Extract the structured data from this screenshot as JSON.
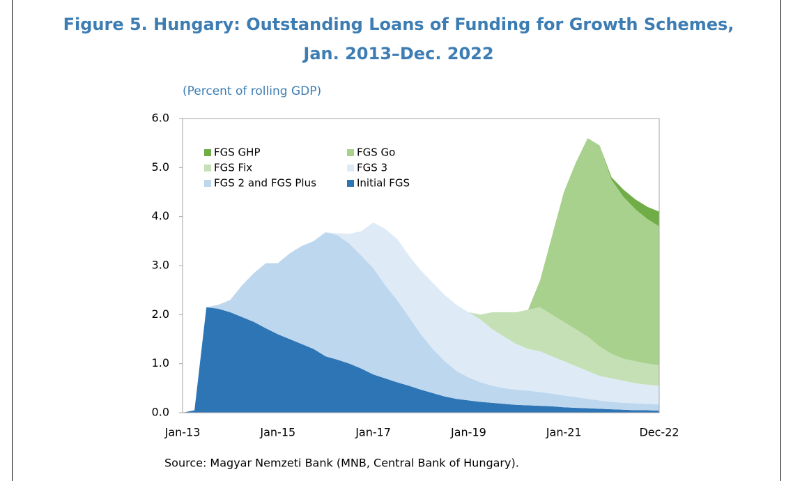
{
  "chart_data": {
    "type": "stacked_area",
    "title": "Figure 5. Hungary: Outstanding Loans of Funding for Growth Schemes,",
    "subtitle": "Jan. 2013–Dec. 2022",
    "y_label": "(Percent of rolling GDP)",
    "source": "Source: Magyar Nemzeti Bank (MNB, Central Bank of Hungary).",
    "x": [
      "Jan-13",
      "Apr-13",
      "Jul-13",
      "Oct-13",
      "Jan-14",
      "Apr-14",
      "Jul-14",
      "Oct-14",
      "Jan-15",
      "Apr-15",
      "Jul-15",
      "Oct-15",
      "Jan-16",
      "Apr-16",
      "Jul-16",
      "Oct-16",
      "Jan-17",
      "Apr-17",
      "Jul-17",
      "Oct-17",
      "Jan-18",
      "Apr-18",
      "Jul-18",
      "Oct-18",
      "Jan-19",
      "Apr-19",
      "Jul-19",
      "Oct-19",
      "Jan-20",
      "Apr-20",
      "Jul-20",
      "Oct-20",
      "Jan-21",
      "Apr-21",
      "Jul-21",
      "Oct-21",
      "Jan-22",
      "Apr-22",
      "Jul-22",
      "Oct-22",
      "Dec-22"
    ],
    "xticks": [
      "Jan-13",
      "Jan-15",
      "Jan-17",
      "Jan-19",
      "Jan-21",
      "Dec-22"
    ],
    "ylim": [
      0,
      6
    ],
    "yticks": [
      {
        "value": 0,
        "label": "0.0"
      },
      {
        "value": 1,
        "label": "1.0"
      },
      {
        "value": 2,
        "label": "2.0"
      },
      {
        "value": 3,
        "label": "3.0"
      },
      {
        "value": 4,
        "label": "4.0"
      },
      {
        "value": 5,
        "label": "5.0"
      },
      {
        "value": 6,
        "label": "6.0"
      }
    ],
    "series": [
      {
        "name": "FGS GHP",
        "color": "#70ad47",
        "values": [
          0,
          0,
          0,
          0,
          0,
          0,
          0,
          0,
          0,
          0,
          0,
          0,
          0,
          0,
          0,
          0,
          0,
          0,
          0,
          0,
          0,
          0,
          0,
          0,
          0,
          0,
          0,
          0,
          0,
          0,
          0,
          0,
          0,
          0,
          0,
          0,
          0.05,
          0.15,
          0.2,
          0.25,
          0.3
        ]
      },
      {
        "name": "FGS Go",
        "color": "#a9d18e",
        "values": [
          0,
          0,
          0,
          0,
          0,
          0,
          0,
          0,
          0,
          0,
          0,
          0,
          0,
          0,
          0,
          0,
          0,
          0,
          0,
          0,
          0,
          0,
          0,
          0,
          0,
          0,
          0,
          0,
          0,
          0,
          0.55,
          1.6,
          2.65,
          3.4,
          4.05,
          4.1,
          3.55,
          3.3,
          3.1,
          2.95,
          2.83
        ]
      },
      {
        "name": "FGS Fix",
        "color": "#c5e0b4",
        "values": [
          0,
          0,
          0,
          0,
          0,
          0,
          0,
          0,
          0,
          0,
          0,
          0,
          0,
          0,
          0,
          0,
          0,
          0,
          0,
          0,
          0,
          0,
          0,
          0,
          0,
          0.1,
          0.35,
          0.5,
          0.65,
          0.8,
          0.9,
          0.85,
          0.8,
          0.75,
          0.7,
          0.6,
          0.5,
          0.45,
          0.45,
          0.43,
          0.42
        ]
      },
      {
        "name": "FGS 3",
        "color": "#deebf7",
        "values": [
          0,
          0,
          0,
          0,
          0,
          0,
          0,
          0,
          0,
          0,
          0,
          0,
          0,
          0.04,
          0.2,
          0.5,
          0.93,
          1.15,
          1.25,
          1.25,
          1.3,
          1.35,
          1.35,
          1.35,
          1.33,
          1.28,
          1.15,
          1.05,
          0.93,
          0.85,
          0.83,
          0.76,
          0.7,
          0.63,
          0.57,
          0.5,
          0.48,
          0.45,
          0.41,
          0.39,
          0.38
        ]
      },
      {
        "name": "FGS 2 and FGS Plus",
        "color": "#bdd7ee",
        "values": [
          0,
          0,
          0,
          0.08,
          0.25,
          0.65,
          1.0,
          1.33,
          1.45,
          1.75,
          2.0,
          2.2,
          2.53,
          2.54,
          2.45,
          2.3,
          2.17,
          1.9,
          1.68,
          1.4,
          1.13,
          0.9,
          0.72,
          0.57,
          0.47,
          0.4,
          0.35,
          0.32,
          0.31,
          0.3,
          0.28,
          0.26,
          0.24,
          0.22,
          0.19,
          0.17,
          0.15,
          0.14,
          0.14,
          0.13,
          0.13
        ]
      },
      {
        "name": "Initial FGS",
        "color": "#2e75b6",
        "values": [
          0,
          0.05,
          2.15,
          2.12,
          2.05,
          1.95,
          1.85,
          1.72,
          1.6,
          1.5,
          1.4,
          1.3,
          1.15,
          1.08,
          1.0,
          0.9,
          0.78,
          0.7,
          0.62,
          0.55,
          0.47,
          0.4,
          0.33,
          0.28,
          0.25,
          0.22,
          0.2,
          0.18,
          0.16,
          0.15,
          0.14,
          0.13,
          0.11,
          0.1,
          0.09,
          0.08,
          0.07,
          0.06,
          0.05,
          0.05,
          0.04
        ]
      }
    ]
  }
}
